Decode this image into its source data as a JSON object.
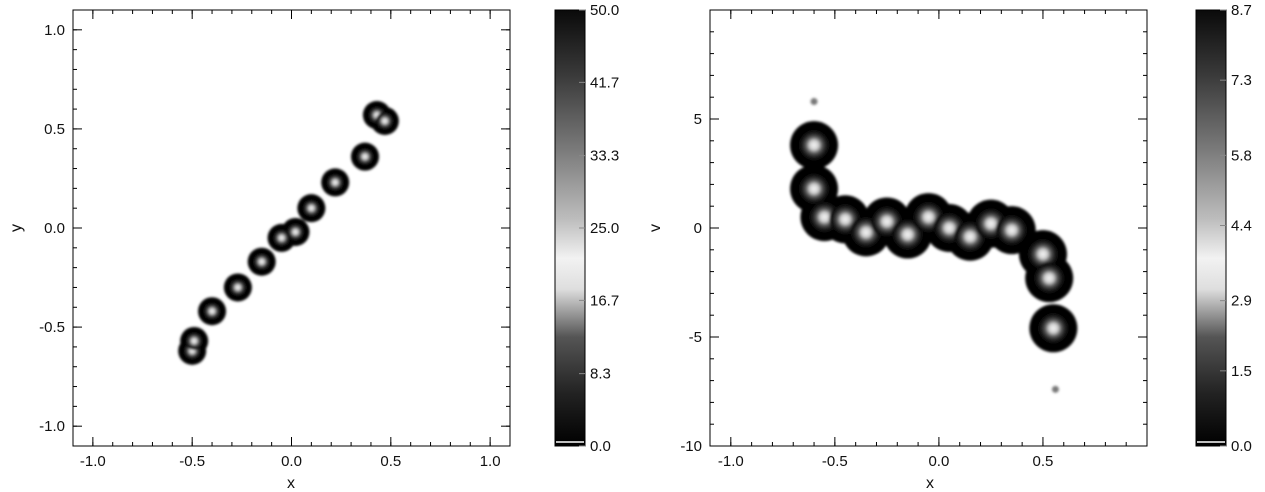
{
  "chart_data": [
    {
      "type": "heatmap",
      "title": "",
      "xlabel": "x",
      "ylabel": "y",
      "xlim": [
        -1.1,
        1.1
      ],
      "ylim": [
        -1.1,
        1.1
      ],
      "xticks": [
        -1.0,
        -0.5,
        0.0,
        0.5,
        1.0
      ],
      "yticks": [
        -1.0,
        -0.5,
        0.0,
        0.5,
        1.0
      ],
      "xtick_labels": [
        "-1.0",
        "-0.5",
        "0.0",
        "0.5",
        "1.0"
      ],
      "ytick_labels": [
        "-1.0",
        "-0.5",
        "0.0",
        "0.5",
        "1.0"
      ],
      "colorbar": {
        "range": [
          0,
          50
        ],
        "ticks": [
          0.0,
          8.3,
          16.7,
          25.0,
          33.3,
          41.7,
          50.0
        ],
        "labels": [
          "0.0",
          "8.3",
          "16.7",
          "25.0",
          "33.3",
          "41.7",
          "50.0"
        ]
      },
      "colormap": "grayscale (dark-light-dark)",
      "blobs": [
        {
          "x": -0.5,
          "y": -0.62
        },
        {
          "x": -0.49,
          "y": -0.57
        },
        {
          "x": -0.4,
          "y": -0.42
        },
        {
          "x": -0.27,
          "y": -0.3
        },
        {
          "x": -0.15,
          "y": -0.17
        },
        {
          "x": -0.05,
          "y": -0.05
        },
        {
          "x": 0.02,
          "y": -0.02
        },
        {
          "x": 0.1,
          "y": 0.1
        },
        {
          "x": 0.22,
          "y": 0.23
        },
        {
          "x": 0.37,
          "y": 0.36
        },
        {
          "x": 0.43,
          "y": 0.57
        },
        {
          "x": 0.47,
          "y": 0.54
        }
      ]
    },
    {
      "type": "heatmap",
      "title": "",
      "xlabel": "x",
      "ylabel": "v",
      "xlim": [
        -1.1,
        1.0
      ],
      "ylim": [
        -10,
        10
      ],
      "xticks": [
        -1.0,
        -0.5,
        0.0,
        0.5
      ],
      "yticks": [
        -10,
        -5,
        0,
        5
      ],
      "xtick_labels": [
        "-1.0",
        "-0.5",
        "0.0",
        "0.5"
      ],
      "ytick_labels": [
        "-10",
        "-5",
        "0",
        "5"
      ],
      "colorbar": {
        "range": [
          0,
          8.7
        ],
        "ticks": [
          0.0,
          1.5,
          2.9,
          4.4,
          5.8,
          7.3,
          8.7
        ],
        "labels": [
          "0.0",
          "1.5",
          "2.9",
          "4.4",
          "5.8",
          "7.3",
          "8.7"
        ]
      },
      "colormap": "grayscale (dark-light-dark)",
      "blobs": [
        {
          "x": -0.6,
          "y": 3.8
        },
        {
          "x": -0.6,
          "y": 1.8
        },
        {
          "x": -0.55,
          "y": 0.5
        },
        {
          "x": -0.45,
          "y": 0.4
        },
        {
          "x": -0.35,
          "y": -0.2
        },
        {
          "x": -0.25,
          "y": 0.3
        },
        {
          "x": -0.15,
          "y": -0.3
        },
        {
          "x": -0.05,
          "y": 0.5
        },
        {
          "x": 0.05,
          "y": 0.0
        },
        {
          "x": 0.15,
          "y": -0.4
        },
        {
          "x": 0.25,
          "y": 0.2
        },
        {
          "x": 0.35,
          "y": -0.1
        },
        {
          "x": 0.5,
          "y": -1.2
        },
        {
          "x": 0.53,
          "y": -2.3
        },
        {
          "x": 0.55,
          "y": -4.6
        },
        {
          "x": -0.6,
          "y": 5.8
        },
        {
          "x": 0.56,
          "y": -7.4
        }
      ]
    }
  ]
}
